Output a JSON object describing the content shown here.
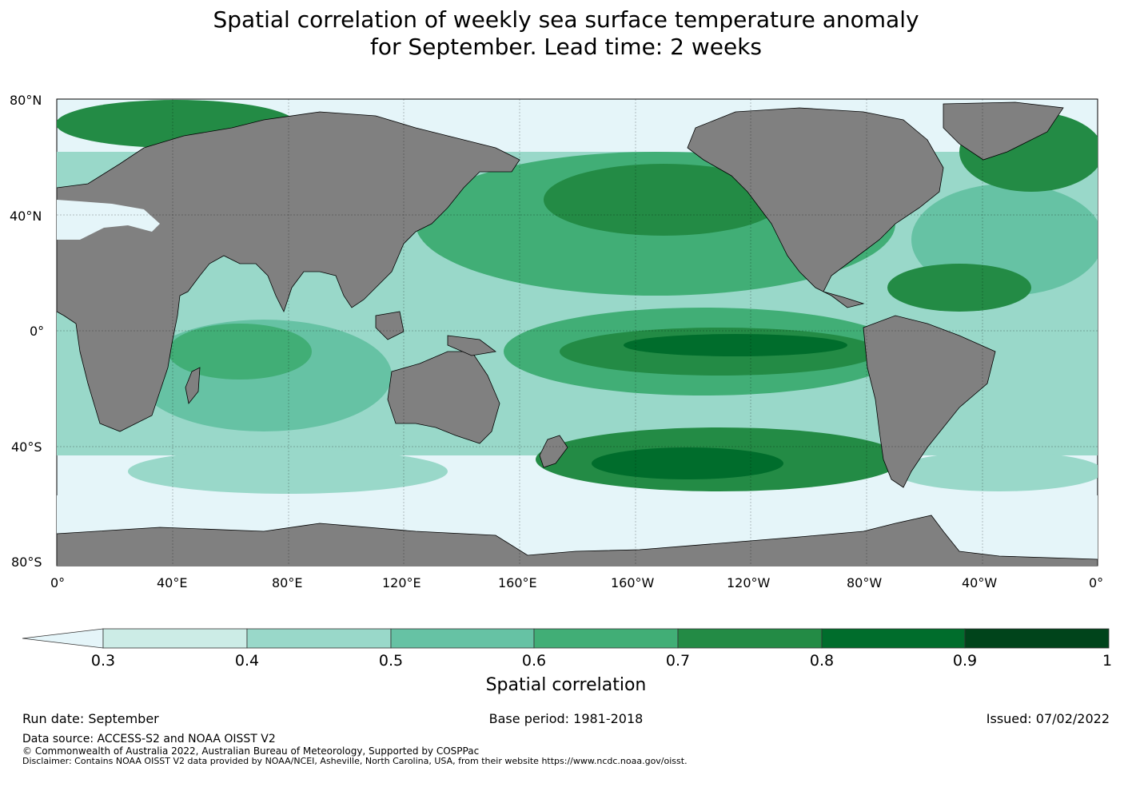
{
  "title": {
    "line1": "Spatial correlation of weekly sea surface temperature anomaly",
    "line2": "for September. Lead time: 2 weeks"
  },
  "map": {
    "lat_labels": [
      "80°N",
      "40°N",
      "0°",
      "40°S",
      "80°S"
    ],
    "lon_labels": [
      "0°",
      "40°E",
      "80°E",
      "120°E",
      "160°E",
      "160°W",
      "120°W",
      "80°W",
      "40°W",
      "0°"
    ],
    "land_color": "#808080",
    "ocean_low_color": "#e5f5f9"
  },
  "colorbar": {
    "title": "Spatial correlation",
    "ticks": [
      "0.3",
      "0.4",
      "0.5",
      "0.6",
      "0.7",
      "0.8",
      "0.9",
      "1"
    ],
    "colors": [
      "#e5f5f9",
      "#ccece6",
      "#99d8c9",
      "#66c2a4",
      "#41ae76",
      "#238b45",
      "#006d2c",
      "#00441b"
    ]
  },
  "footer": {
    "run_date": "Run date: September",
    "base_period": "Base period: 1981-2018",
    "issued": "Issued: 07/02/2022",
    "data_source": "Data source: ACCESS-S2 and NOAA OISST V2",
    "copyright": "© Commonwealth of Australia 2022, Australian Bureau of Meteorology, Supported by COSPPac",
    "disclaimer": "Disclaimer: Contains NOAA OISST V2 data provided by NOAA/NCEI, Asheville, North Carolina, USA, from their website https://www.ncdc.noaa.gov/oisst."
  }
}
